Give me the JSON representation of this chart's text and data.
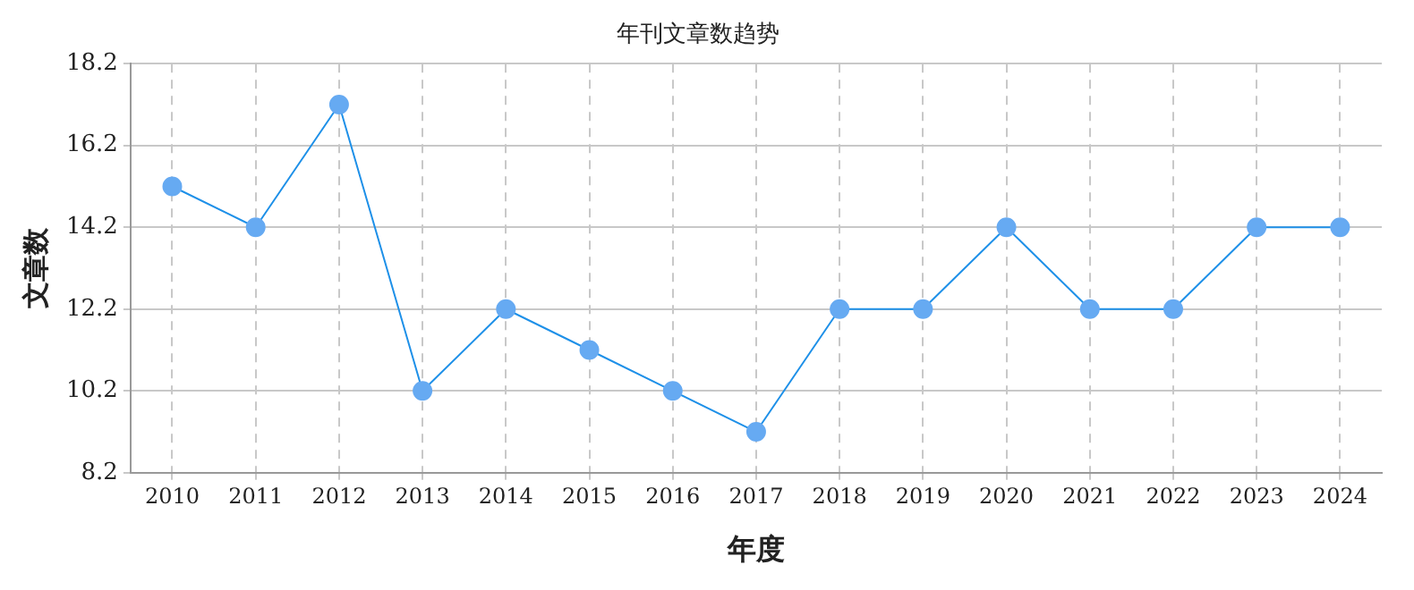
{
  "chart_data": {
    "type": "line",
    "title": "年刊文章数趋势",
    "xlabel": "年度",
    "ylabel": "文章数",
    "categories": [
      "2010",
      "2011",
      "2012",
      "2013",
      "2014",
      "2015",
      "2016",
      "2017",
      "2018",
      "2019",
      "2020",
      "2021",
      "2022",
      "2023",
      "2024"
    ],
    "series": [
      {
        "color": "#1e90e8",
        "values": [
          15.2,
          14.2,
          17.2,
          10.2,
          12.2,
          11.2,
          10.2,
          9.2,
          12.2,
          12.2,
          14.2,
          12.2,
          12.2,
          14.2,
          14.2
        ]
      }
    ],
    "ylim": [
      8.2,
      18.2
    ],
    "yticks": [
      8.2,
      10.2,
      12.2,
      14.2,
      16.2,
      18.2
    ],
    "grid": true,
    "legend": false,
    "marker": "circle",
    "line_style": "solid"
  }
}
